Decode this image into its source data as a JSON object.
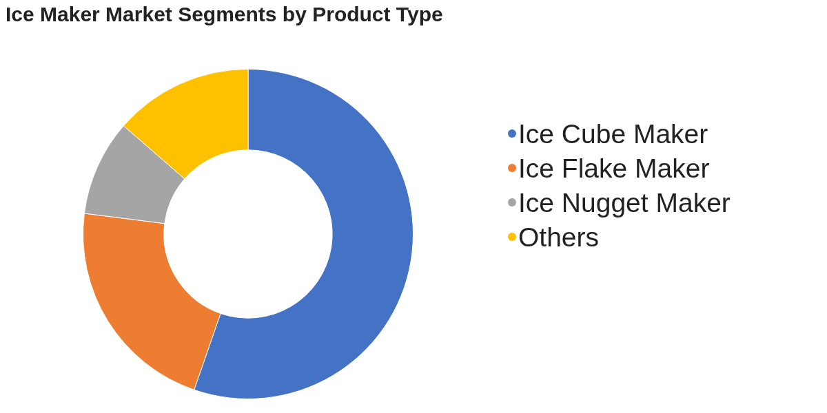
{
  "chart_data": {
    "type": "donut",
    "title": "Ice Maker Market Segments by Product Type",
    "categories": [
      "Ice Cube Maker",
      "Ice Flake Maker",
      "Ice Nugget Maker",
      "Others"
    ],
    "values": [
      55.3,
      21.7,
      9.4,
      13.6
    ],
    "colors": [
      "#4472c4",
      "#ed7d31",
      "#a5a5a5",
      "#ffc000"
    ],
    "legend": "right"
  }
}
